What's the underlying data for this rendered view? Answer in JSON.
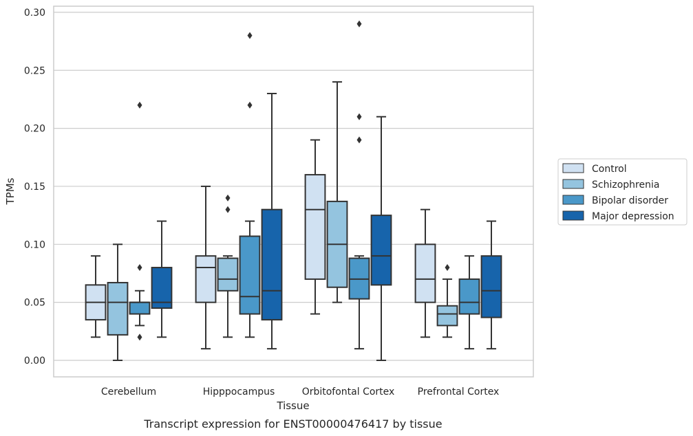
{
  "chart_data": {
    "type": "boxplot",
    "caption": "Transcript expression for ENST00000476417 by tissue",
    "xlabel": "Tissue",
    "ylabel": "TPMs",
    "ylim": [
      -0.014,
      0.304
    ],
    "yticks": [
      0.0,
      0.05,
      0.1,
      0.15,
      0.2,
      0.25,
      0.3
    ],
    "ytick_labels": [
      "0.00",
      "0.05",
      "0.10",
      "0.15",
      "0.20",
      "0.25",
      "0.30"
    ],
    "grid": "horizontal",
    "legend_position": "right",
    "categories": [
      "Cerebellum",
      "Hipppocampus",
      "Orbitofontal Cortex",
      "Prefrontal Cortex"
    ],
    "series": [
      {
        "name": "Control",
        "color": "#d0e1f2",
        "boxes": [
          {
            "whislo": 0.02,
            "q1": 0.035,
            "med": 0.05,
            "q3": 0.065,
            "whishi": 0.09,
            "fliers": []
          },
          {
            "whislo": 0.01,
            "q1": 0.05,
            "med": 0.08,
            "q3": 0.09,
            "whishi": 0.15,
            "fliers": []
          },
          {
            "whislo": 0.04,
            "q1": 0.07,
            "med": 0.13,
            "q3": 0.16,
            "whishi": 0.19,
            "fliers": []
          },
          {
            "whislo": 0.02,
            "q1": 0.05,
            "med": 0.07,
            "q3": 0.1,
            "whishi": 0.13,
            "fliers": []
          }
        ]
      },
      {
        "name": "Schizophrenia",
        "color": "#94c4df",
        "boxes": [
          {
            "whislo": 0.0,
            "q1": 0.022,
            "med": 0.05,
            "q3": 0.067,
            "whishi": 0.1,
            "fliers": []
          },
          {
            "whislo": 0.02,
            "q1": 0.06,
            "med": 0.07,
            "q3": 0.088,
            "whishi": 0.09,
            "fliers": [
              0.13,
              0.14
            ]
          },
          {
            "whislo": 0.05,
            "q1": 0.063,
            "med": 0.1,
            "q3": 0.137,
            "whishi": 0.24,
            "fliers": []
          },
          {
            "whislo": 0.02,
            "q1": 0.03,
            "med": 0.04,
            "q3": 0.047,
            "whishi": 0.07,
            "fliers": [
              0.08
            ]
          }
        ]
      },
      {
        "name": "Bipolar disorder",
        "color": "#4a98c9",
        "boxes": [
          {
            "whislo": 0.03,
            "q1": 0.04,
            "med": 0.05,
            "q3": 0.05,
            "whishi": 0.06,
            "fliers": [
              0.02,
              0.08,
              0.22
            ]
          },
          {
            "whislo": 0.02,
            "q1": 0.04,
            "med": 0.055,
            "q3": 0.107,
            "whishi": 0.12,
            "fliers": [
              0.22,
              0.28
            ]
          },
          {
            "whislo": 0.01,
            "q1": 0.053,
            "med": 0.07,
            "q3": 0.088,
            "whishi": 0.09,
            "fliers": [
              0.19,
              0.21,
              0.29
            ]
          },
          {
            "whislo": 0.01,
            "q1": 0.04,
            "med": 0.05,
            "q3": 0.07,
            "whishi": 0.09,
            "fliers": []
          }
        ]
      },
      {
        "name": "Major depression",
        "color": "#1764ab",
        "boxes": [
          {
            "whislo": 0.02,
            "q1": 0.045,
            "med": 0.05,
            "q3": 0.08,
            "whishi": 0.12,
            "fliers": []
          },
          {
            "whislo": 0.01,
            "q1": 0.035,
            "med": 0.06,
            "q3": 0.13,
            "whishi": 0.23,
            "fliers": []
          },
          {
            "whislo": 0.0,
            "q1": 0.065,
            "med": 0.09,
            "q3": 0.125,
            "whishi": 0.21,
            "fliers": []
          },
          {
            "whislo": 0.01,
            "q1": 0.037,
            "med": 0.06,
            "q3": 0.09,
            "whishi": 0.12,
            "fliers": []
          }
        ]
      }
    ]
  }
}
